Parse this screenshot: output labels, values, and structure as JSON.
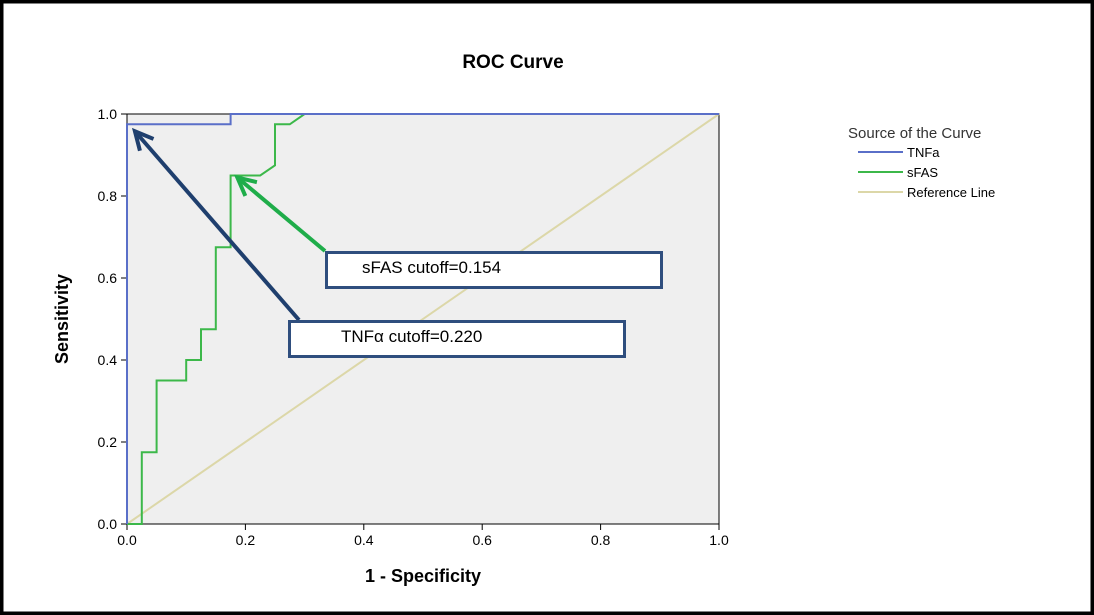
{
  "colors": {
    "plot_background": "#efefef",
    "tnfa": "#5a6fc8",
    "sfas": "#3cb84a",
    "reference": "#dcd7a8",
    "tnfa_arrow": "#1f3f6e",
    "sfas_arrow": "#1fad4a",
    "box_border": "#2f4e7e"
  },
  "chart_data": {
    "type": "line",
    "title": "ROC Curve",
    "xlabel": "1 - Specificity",
    "ylabel": "Sensitivity",
    "xlim": [
      0,
      1
    ],
    "ylim": [
      0,
      1
    ],
    "x_ticks": [
      "0.0",
      "0.2",
      "0.4",
      "0.6",
      "0.8",
      "1.0"
    ],
    "y_ticks": [
      "0.0",
      "0.2",
      "0.4",
      "0.6",
      "0.8",
      "1.0"
    ],
    "grid": false,
    "legend_title": "Source of the Curve",
    "legend_position": "right",
    "series": [
      {
        "name": "TNFa",
        "color": "#5a6fc8",
        "points": [
          [
            0,
            0
          ],
          [
            0,
            0.975
          ],
          [
            0.175,
            0.975
          ],
          [
            0.175,
            1.0
          ],
          [
            1.0,
            1.0
          ]
        ]
      },
      {
        "name": "sFAS",
        "color": "#3cb84a",
        "points": [
          [
            0,
            0
          ],
          [
            0.025,
            0
          ],
          [
            0.025,
            0.175
          ],
          [
            0.05,
            0.175
          ],
          [
            0.05,
            0.35
          ],
          [
            0.1,
            0.35
          ],
          [
            0.1,
            0.4
          ],
          [
            0.125,
            0.4
          ],
          [
            0.125,
            0.475
          ],
          [
            0.15,
            0.475
          ],
          [
            0.15,
            0.675
          ],
          [
            0.175,
            0.675
          ],
          [
            0.175,
            0.85
          ],
          [
            0.225,
            0.85
          ],
          [
            0.25,
            0.875
          ],
          [
            0.25,
            0.975
          ],
          [
            0.275,
            0.975
          ],
          [
            0.3,
            1.0
          ],
          [
            1.0,
            1.0
          ]
        ]
      },
      {
        "name": "Reference Line",
        "color": "#dcd7a8",
        "points": [
          [
            0,
            0
          ],
          [
            1,
            1
          ]
        ]
      }
    ],
    "annotations": [
      {
        "id": "sfas",
        "text": "sFAS cutoff=0.154",
        "target": [
          0.183,
          0.85
        ],
        "arrow_color": "#1fad4a"
      },
      {
        "id": "tnfa",
        "text": "TNFα cutoff=0.220",
        "target": [
          0.01,
          0.975
        ],
        "arrow_color": "#1f3f6e"
      }
    ]
  }
}
